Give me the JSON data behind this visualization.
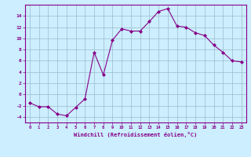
{
  "xlabel": "Windchill (Refroidissement éolien,°C)",
  "x_values": [
    0,
    1,
    2,
    3,
    4,
    5,
    6,
    7,
    8,
    9,
    10,
    11,
    12,
    13,
    14,
    15,
    16,
    17,
    18,
    19,
    20,
    21,
    22,
    23
  ],
  "y_values": [
    -1.5,
    -2.2,
    -2.2,
    -3.5,
    -3.8,
    -2.3,
    -0.8,
    7.5,
    3.5,
    9.7,
    11.7,
    11.3,
    11.3,
    13.0,
    14.8,
    15.3,
    12.2,
    12.0,
    11.0,
    10.5,
    8.8,
    7.5,
    6.0,
    5.8
  ],
  "line_color": "#880088",
  "marker_color": "#880088",
  "bg_color": "#cceeff",
  "grid_color": "#99bbcc",
  "ylim": [
    -5,
    16
  ],
  "yticks": [
    -4,
    -2,
    0,
    2,
    4,
    6,
    8,
    10,
    12,
    14
  ],
  "tick_color": "#880088",
  "label_color": "#880088",
  "spine_color": "#880088"
}
